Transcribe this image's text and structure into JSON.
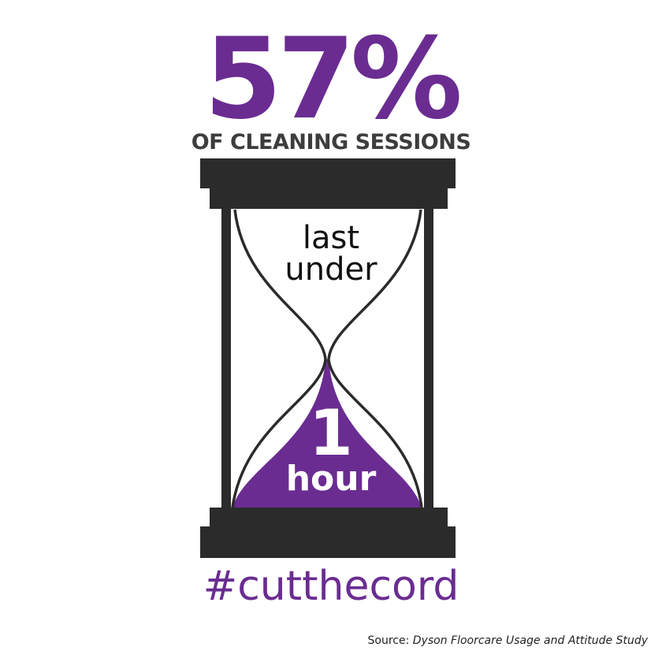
{
  "headline": {
    "stat": "57%",
    "subtitle": "OF CLEANING SESSIONS"
  },
  "hourglass": {
    "line1": "last",
    "line2": "under",
    "number": "1",
    "unit": "hour",
    "sand_color": "#6a2c91",
    "frame_color": "#2b2b2b"
  },
  "hashtag": "#cutthecord",
  "source": {
    "label": "Source:",
    "title": "Dyson Floorcare Usage and Attitude Study"
  },
  "colors": {
    "accent": "#6a2c91",
    "frame": "#2b2b2b",
    "subtitle_text": "#3d3d3d"
  }
}
